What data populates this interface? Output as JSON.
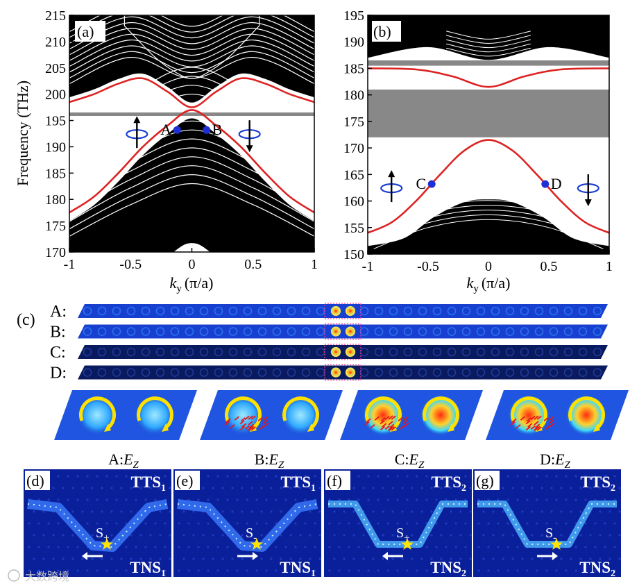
{
  "chart_data": [
    {
      "type": "line",
      "panel": "(a)",
      "ylabel": "Frequency (THz)",
      "xlabel_main": "k",
      "xlabel_sub": "y",
      "xlabel_unit": "(π/a)",
      "x_ticks": [
        "-1",
        "-0.5",
        "0",
        "0.5",
        "1"
      ],
      "y_ticks": [
        "170",
        "175",
        "180",
        "185",
        "190",
        "195",
        "200",
        "205",
        "210",
        "215"
      ],
      "ylim": [
        170,
        215
      ],
      "xlim": [
        -1,
        1
      ],
      "edge_state_upper": {
        "x": [
          -1,
          -0.8,
          -0.6,
          -0.4,
          -0.2,
          0,
          0.2,
          0.4,
          0.6,
          0.8,
          1
        ],
        "y": [
          198.5,
          200,
          202,
          203,
          200.5,
          197.5,
          200.5,
          203,
          202,
          200,
          198.5
        ]
      },
      "edge_state_lower": {
        "x": [
          -1,
          -0.8,
          -0.6,
          -0.4,
          -0.2,
          0,
          0.2,
          0.4,
          0.6,
          0.8,
          1
        ],
        "y": [
          177.5,
          180.5,
          185,
          190,
          194,
          197,
          194,
          190,
          185,
          180.5,
          177.5
        ]
      },
      "gap_line": 196.2,
      "points": [
        {
          "label": "A",
          "x": -0.12,
          "y": 193.2
        },
        {
          "label": "B",
          "x": 0.12,
          "y": 193.2
        }
      ]
    },
    {
      "type": "line",
      "panel": "(b)",
      "ylabel": "",
      "xlabel_main": "k",
      "xlabel_sub": "y",
      "xlabel_unit": "(π/a)",
      "x_ticks": [
        "-1",
        "-0.5",
        "0",
        "0.5",
        "1"
      ],
      "y_ticks": [
        "150",
        "155",
        "160",
        "165",
        "170",
        "175",
        "180",
        "185",
        "190",
        "195"
      ],
      "ylim": [
        150,
        195
      ],
      "xlim": [
        -1,
        1
      ],
      "edge_state_upper": {
        "x": [
          -1,
          -0.6,
          -0.3,
          0,
          0.3,
          0.6,
          1
        ],
        "y": [
          185,
          184.8,
          183.5,
          181.5,
          183.5,
          184.8,
          185
        ]
      },
      "edge_state_lower": {
        "x": [
          -1,
          -0.8,
          -0.6,
          -0.4,
          -0.2,
          0,
          0.2,
          0.4,
          0.6,
          0.8,
          1
        ],
        "y": [
          154,
          156,
          160,
          165,
          169.5,
          171.5,
          169.5,
          165,
          160,
          156,
          154
        ]
      },
      "gap_bands": [
        [
          185.5,
          186.5
        ],
        [
          172,
          181
        ]
      ],
      "points": [
        {
          "label": "C",
          "x": -0.47,
          "y": 163.2
        },
        {
          "label": "D",
          "x": 0.47,
          "y": 163.2
        }
      ]
    }
  ],
  "panel_labels": {
    "a": "(a)",
    "b": "(b)",
    "c": "(c)",
    "d": "(d)",
    "e": "(e)",
    "f": "(f)",
    "g": "(g)"
  },
  "strip_rows": [
    "A:",
    "B:",
    "C:",
    "D:"
  ],
  "field_labels": [
    {
      "p": "A:",
      "s": "Z"
    },
    {
      "p": "B:",
      "s": "Z"
    },
    {
      "p": "C:",
      "s": "Z"
    },
    {
      "p": "D:",
      "s": "Z"
    }
  ],
  "field_var": "E",
  "bottom_panels": [
    {
      "tts": "TTS",
      "tts_sub": "1",
      "tns": "TNS",
      "tns_sub": "1",
      "src": "S",
      "src_sub": "+",
      "dir": "left"
    },
    {
      "tts": "TTS",
      "tts_sub": "1",
      "tns": "TNS",
      "tns_sub": "1",
      "src": "S",
      "src_sub": "-",
      "dir": "right"
    },
    {
      "tts": "TTS",
      "tts_sub": "2",
      "tns": "TNS",
      "tns_sub": "2",
      "src": "S",
      "src_sub": "+",
      "dir": "left"
    },
    {
      "tts": "TTS",
      "tts_sub": "2",
      "tns": "TNS",
      "tns_sub": "2",
      "src": "S",
      "src_sub": "-",
      "dir": "right"
    }
  ],
  "watermark": "大数跨境",
  "colors": {
    "edge": "#dd2222",
    "gap": "#888888",
    "point": "#1f2fd6",
    "field_dark": "#0a1a5e",
    "field_mid": "#1740d0"
  }
}
